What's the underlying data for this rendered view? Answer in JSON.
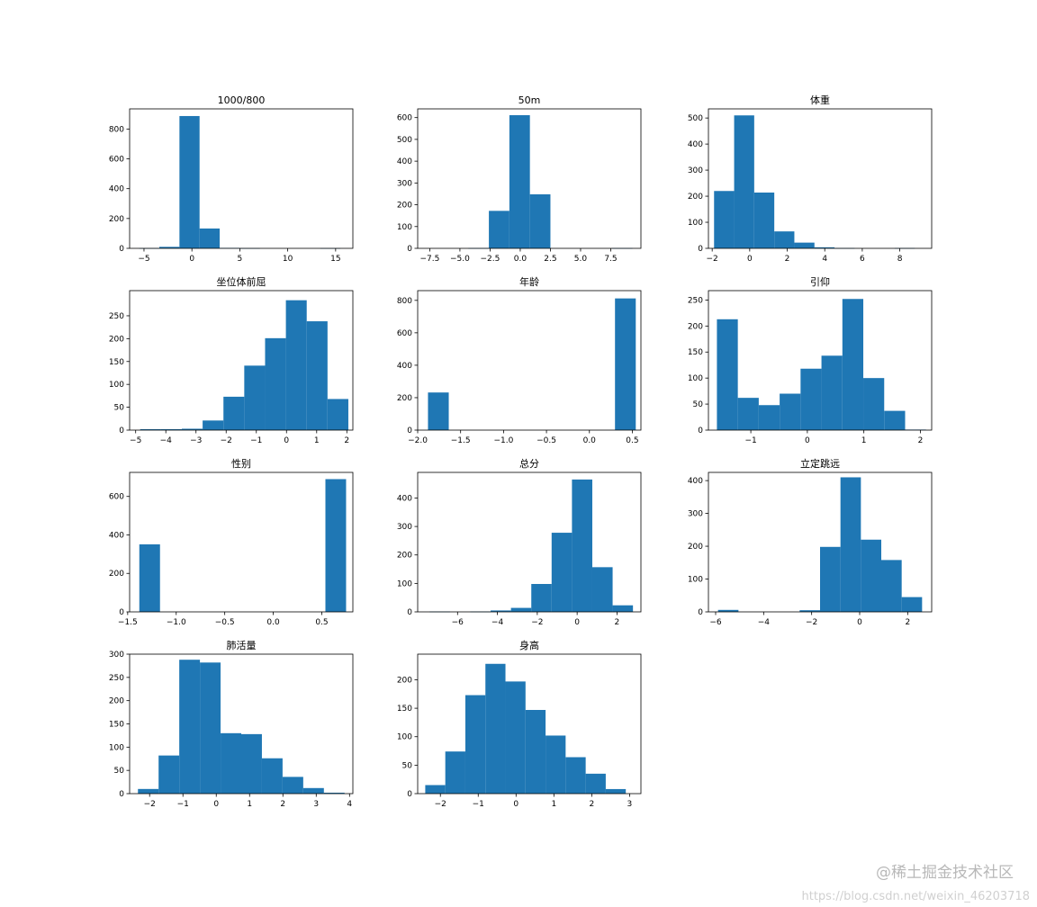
{
  "chart_data": [
    {
      "type": "bar",
      "title": "1000/800",
      "xlim": [
        -6.5,
        16.8
      ],
      "ylim": [
        0,
        935
      ],
      "xticks": [
        -5,
        0,
        5,
        10,
        15
      ],
      "xtick_labels": [
        "−5",
        "0",
        "5",
        "10",
        "15"
      ],
      "yticks": [
        0,
        200,
        400,
        600,
        800
      ],
      "ytick_labels": [
        "0",
        "200",
        "400",
        "600",
        "800"
      ],
      "bin_edges": [
        -5.5,
        -3.4,
        -1.3,
        0.8,
        2.9,
        5.0,
        7.1,
        9.2,
        11.3,
        13.4,
        15.5
      ],
      "counts": [
        1,
        10,
        887,
        133,
        3,
        1,
        0,
        0,
        0,
        1
      ]
    },
    {
      "type": "bar",
      "title": "50m",
      "xlim": [
        -8.5,
        10
      ],
      "ylim": [
        0,
        640
      ],
      "xticks": [
        -7.5,
        -5,
        -2.5,
        0,
        2.5,
        5,
        7.5
      ],
      "xtick_labels": [
        "−7.5",
        "−5.0",
        "−2.5",
        "0.0",
        "2.5",
        "5.0",
        "7.5"
      ],
      "yticks": [
        0,
        100,
        200,
        300,
        400,
        500,
        600
      ],
      "ytick_labels": [
        "0",
        "100",
        "200",
        "300",
        "400",
        "500",
        "600"
      ],
      "bin_edges": [
        -7.7,
        -6.0,
        -4.3,
        -2.6,
        -0.9,
        0.8,
        2.5,
        4.2,
        5.9,
        7.6,
        9.3
      ],
      "counts": [
        0,
        0,
        1,
        172,
        611,
        248,
        0,
        0,
        0,
        1
      ]
    },
    {
      "type": "bar",
      "title": "体重",
      "xlim": [
        -2.2,
        9.7
      ],
      "ylim": [
        0,
        535
      ],
      "xticks": [
        -2,
        0,
        2,
        4,
        6,
        8
      ],
      "xtick_labels": [
        "−2",
        "0",
        "2",
        "4",
        "6",
        "8"
      ],
      "yticks": [
        0,
        100,
        200,
        300,
        400,
        500
      ],
      "ytick_labels": [
        "0",
        "100",
        "200",
        "300",
        "400",
        "500"
      ],
      "bin_edges": [
        -1.9,
        -0.83,
        0.24,
        1.31,
        2.38,
        3.45,
        4.52,
        5.59,
        6.66,
        7.73,
        8.8
      ],
      "counts": [
        220,
        510,
        214,
        65,
        22,
        4,
        1,
        0,
        0,
        1
      ]
    },
    {
      "type": "bar",
      "title": "坐位体前屈",
      "xlim": [
        -5.2,
        2.2
      ],
      "ylim": [
        0,
        305
      ],
      "xticks": [
        -5,
        -4,
        -3,
        -2,
        -1,
        0,
        1,
        2
      ],
      "xtick_labels": [
        "−5",
        "−4",
        "−3",
        "−2",
        "−1",
        "0",
        "1",
        "2"
      ],
      "yticks": [
        0,
        50,
        100,
        150,
        200,
        250
      ],
      "ytick_labels": [
        "0",
        "50",
        "100",
        "150",
        "200",
        "250"
      ],
      "bin_edges": [
        -4.85,
        -4.16,
        -3.47,
        -2.78,
        -2.09,
        -1.4,
        -0.71,
        -0.02,
        0.67,
        1.36,
        2.05
      ],
      "counts": [
        2,
        2,
        3,
        21,
        73,
        141,
        201,
        284,
        238,
        68
      ]
    },
    {
      "type": "bar",
      "title": "年龄",
      "xlim": [
        -2.0,
        0.6
      ],
      "ylim": [
        0,
        860
      ],
      "xticks": [
        -2,
        -1.5,
        -1,
        -0.5,
        0,
        0.5
      ],
      "xtick_labels": [
        "−2.0",
        "−1.5",
        "−1.0",
        "−0.5",
        "0.0",
        "0.5"
      ],
      "yticks": [
        0,
        200,
        400,
        600,
        800
      ],
      "ytick_labels": [
        "0",
        "200",
        "400",
        "600",
        "800"
      ],
      "bin_edges": [
        -1.88,
        -1.638,
        -1.396,
        -1.154,
        -0.912,
        -0.67,
        -0.428,
        -0.186,
        0.056,
        0.298,
        0.54
      ],
      "counts": [
        232,
        0,
        0,
        0,
        0,
        0,
        0,
        0,
        0,
        812
      ]
    },
    {
      "type": "bar",
      "title": "引仰",
      "xlim": [
        -1.75,
        2.2
      ],
      "ylim": [
        0,
        268
      ],
      "xticks": [
        -1,
        0,
        1,
        2
      ],
      "xtick_labels": [
        "−1",
        "0",
        "1",
        "2"
      ],
      "yticks": [
        0,
        50,
        100,
        150,
        200,
        250
      ],
      "ytick_labels": [
        "0",
        "50",
        "100",
        "150",
        "200",
        "250"
      ],
      "bin_edges": [
        -1.6,
        -1.23,
        -0.86,
        -0.49,
        -0.12,
        0.25,
        0.62,
        0.99,
        1.36,
        1.73,
        2.1
      ],
      "counts": [
        213,
        62,
        48,
        70,
        118,
        143,
        252,
        100,
        37,
        1
      ]
    },
    {
      "type": "bar",
      "title": "性别",
      "xlim": [
        -1.48,
        0.82
      ],
      "ylim": [
        0,
        725
      ],
      "xticks": [
        -1.5,
        -1,
        -0.5,
        0,
        0.5
      ],
      "xtick_labels": [
        "−1.5",
        "−1.0",
        "−0.5",
        "0.0",
        "0.5"
      ],
      "yticks": [
        0,
        200,
        400,
        600
      ],
      "ytick_labels": [
        "0",
        "200",
        "400",
        "600"
      ],
      "bin_edges": [
        -1.38,
        -1.167,
        -0.954,
        -0.741,
        -0.528,
        -0.315,
        -0.102,
        0.111,
        0.324,
        0.537,
        0.75
      ],
      "counts": [
        351,
        0,
        0,
        0,
        0,
        0,
        0,
        0,
        0,
        690
      ]
    },
    {
      "type": "bar",
      "title": "总分",
      "xlim": [
        -8.0,
        3.2
      ],
      "ylim": [
        0,
        490
      ],
      "xticks": [
        -6,
        -4,
        -2,
        0,
        2
      ],
      "xtick_labels": [
        "−6",
        "−4",
        "−2",
        "0",
        "2"
      ],
      "yticks": [
        0,
        100,
        200,
        300,
        400
      ],
      "ytick_labels": [
        "0",
        "100",
        "200",
        "300",
        "400"
      ],
      "bin_edges": [
        -7.4,
        -6.38,
        -5.36,
        -4.34,
        -3.32,
        -2.3,
        -1.28,
        -0.26,
        0.76,
        1.78,
        2.8
      ],
      "counts": [
        1,
        0,
        1,
        5,
        14,
        98,
        278,
        465,
        157,
        23
      ]
    },
    {
      "type": "bar",
      "title": "立定跳远",
      "xlim": [
        -6.3,
        3.0
      ],
      "ylim": [
        0,
        425
      ],
      "xticks": [
        -6,
        -4,
        -2,
        0,
        2
      ],
      "xtick_labels": [
        "−6",
        "−4",
        "−2",
        "0",
        "2"
      ],
      "yticks": [
        0,
        100,
        200,
        300,
        400
      ],
      "ytick_labels": [
        "0",
        "100",
        "200",
        "300",
        "400"
      ],
      "bin_edges": [
        -5.9,
        -5.05,
        -4.2,
        -3.35,
        -2.5,
        -1.65,
        -0.8,
        0.05,
        0.9,
        1.75,
        2.6
      ],
      "counts": [
        6,
        0,
        0,
        0,
        5,
        198,
        410,
        220,
        158,
        45
      ]
    },
    {
      "type": "bar",
      "title": "肺活量",
      "xlim": [
        -2.6,
        4.1
      ],
      "ylim": [
        0,
        300
      ],
      "xticks": [
        -2,
        -1,
        0,
        1,
        2,
        3,
        4
      ],
      "xtick_labels": [
        "−2",
        "−1",
        "0",
        "1",
        "2",
        "3",
        "4"
      ],
      "yticks": [
        0,
        50,
        100,
        150,
        200,
        250,
        300
      ],
      "ytick_labels": [
        "0",
        "50",
        "100",
        "150",
        "200",
        "250",
        "300"
      ],
      "bin_edges": [
        -2.35,
        -1.73,
        -1.11,
        -0.49,
        0.13,
        0.75,
        1.37,
        1.99,
        2.61,
        3.23,
        3.85
      ],
      "counts": [
        10,
        82,
        288,
        282,
        130,
        128,
        76,
        36,
        12,
        2
      ]
    },
    {
      "type": "bar",
      "title": "身高",
      "xlim": [
        -2.6,
        3.3
      ],
      "ylim": [
        0,
        245
      ],
      "xticks": [
        -2,
        -1,
        0,
        1,
        2,
        3
      ],
      "xtick_labels": [
        "−2",
        "−1",
        "0",
        "1",
        "2",
        "3"
      ],
      "yticks": [
        0,
        50,
        100,
        150,
        200
      ],
      "ytick_labels": [
        "0",
        "50",
        "100",
        "150",
        "200"
      ],
      "bin_edges": [
        -2.4,
        -1.87,
        -1.34,
        -0.81,
        -0.28,
        0.25,
        0.78,
        1.31,
        1.84,
        2.37,
        2.9
      ],
      "counts": [
        15,
        74,
        173,
        228,
        197,
        147,
        102,
        64,
        35,
        8
      ]
    }
  ],
  "colors": {
    "bar": "#1f77b4",
    "axes": "#000000",
    "background": "#ffffff"
  },
  "watermark": {
    "logo": "@稀土掘金技术社区",
    "url": "https://blog.csdn.net/weixin_46203718"
  }
}
